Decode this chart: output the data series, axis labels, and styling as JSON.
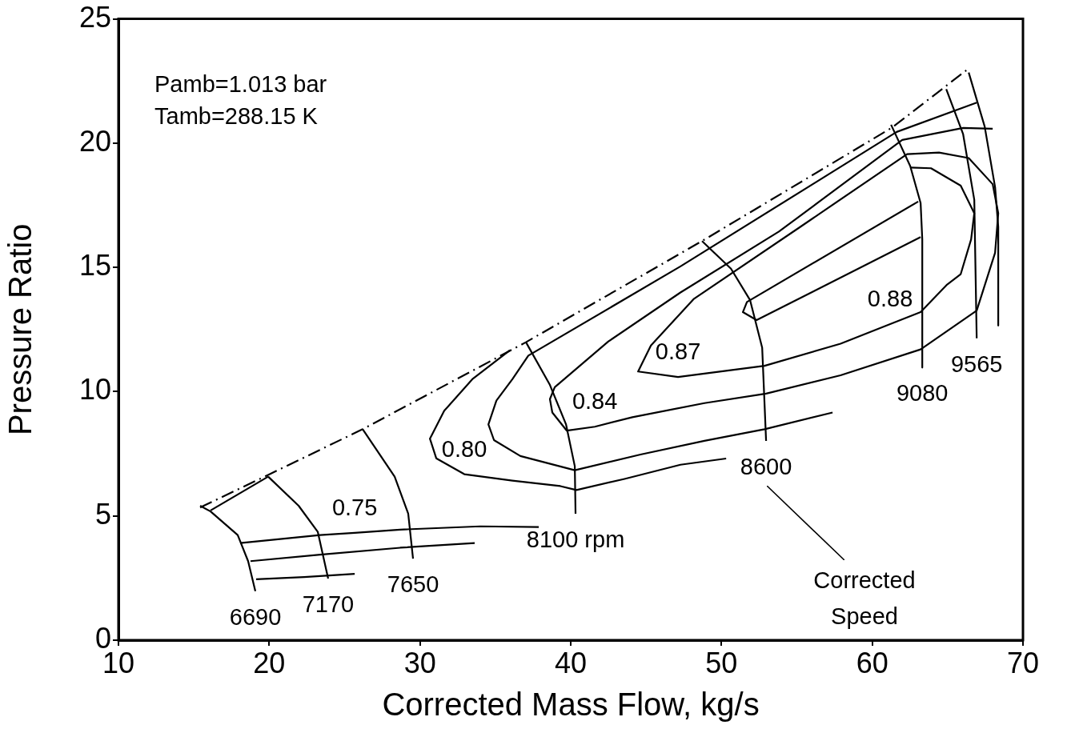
{
  "chart_data": {
    "type": "line",
    "xlabel": "Corrected Mass Flow, kg/s",
    "ylabel": "Pressure Ratio",
    "xlim": [
      10,
      70
    ],
    "xticks": [
      10,
      20,
      30,
      40,
      50,
      60,
      70
    ],
    "ylim": [
      0,
      25
    ],
    "yticks": [
      0,
      5,
      10,
      15,
      20,
      25
    ],
    "grid": false,
    "legend": false,
    "marker": "none",
    "series": [
      {
        "color": "#000000",
        "line_style": "dashed",
        "x": [
          15.42,
          19.93,
          26.2,
          37.03,
          48.71,
          61.35,
          66.24
        ],
        "values": [
          5.34,
          6.65,
          8.49,
          11.99,
          16.06,
          20.64,
          22.93
        ]
      },
      {
        "name": "6690",
        "color": "#000000",
        "x": [
          15.42,
          16.11,
          17.91,
          18.6,
          19.08
        ],
        "values": [
          5.41,
          5.18,
          4.23,
          3.18,
          1.97
        ]
      },
      {
        "name": "7170",
        "color": "#000000",
        "x": [
          19.93,
          21.95,
          23.22,
          23.91
        ],
        "values": [
          6.58,
          5.41,
          4.36,
          2.48
        ]
      },
      {
        "name": "7650",
        "color": "#000000",
        "x": [
          26.2,
          28.32,
          29.22,
          29.54
        ],
        "values": [
          8.49,
          6.58,
          5.09,
          3.28
        ]
      },
      {
        "name": "8100 rpm",
        "color": "#000000",
        "x": [
          37.03,
          38.62,
          39.69,
          40.27,
          40.32
        ],
        "values": [
          11.99,
          10.27,
          8.68,
          7.0,
          5.09
        ]
      },
      {
        "name": "8600",
        "color": "#000000",
        "x": [
          48.71,
          50.63,
          51.9,
          52.7,
          52.96
        ],
        "values": [
          16.06,
          14.95,
          13.68,
          11.77,
          8.02
        ]
      },
      {
        "name": "9080",
        "color": "#000000",
        "x": [
          61.25,
          62.52,
          63.21,
          63.32,
          63.32
        ],
        "values": [
          20.74,
          19.08,
          17.59,
          16.13,
          10.97
        ]
      },
      {
        "name": "9565",
        "color": "#000000",
        "x": [
          64.91,
          66.03,
          66.77,
          66.93
        ],
        "values": [
          22.17,
          20.36,
          17.72,
          12.15
        ]
      },
      {
        "color": "#000000",
        "x": [
          66.4,
          67.46,
          68.15,
          68.36,
          68.36
        ],
        "values": [
          22.84,
          20.67,
          18.23,
          16.63,
          12.66
        ]
      },
      {
        "color": "#000000",
        "x": [
          16.11,
          19.93
        ],
        "values": [
          5.22,
          6.58
        ]
      },
      {
        "color": "#000000",
        "x": [
          18.07,
          23.38,
          25.67,
          28.69,
          34.0,
          37.88
        ],
        "values": [
          3.91,
          4.23,
          4.32,
          4.45,
          4.58,
          4.55
        ]
      },
      {
        "color": "#000000",
        "x": [
          18.76,
          23.38,
          28.69,
          33.63
        ],
        "values": [
          3.18,
          3.44,
          3.72,
          3.91
        ]
      },
      {
        "color": "#000000",
        "x": [
          19.13,
          22.32,
          25.67
        ],
        "values": [
          2.45,
          2.54,
          2.67
        ]
      },
      {
        "color": "#000000",
        "x": [
          35.97,
          33.47,
          31.61,
          30.66,
          31.08,
          32.94,
          36.13,
          39.31,
          40.38,
          43.57,
          47.28,
          50.31
        ],
        "values": [
          11.67,
          10.5,
          9.23,
          8.11,
          7.32,
          6.68,
          6.42,
          6.2,
          6.04,
          6.49,
          7.06,
          7.31
        ]
      },
      {
        "color": "#000000",
        "x": [
          66.93,
          61.62,
          47.28,
          37.19,
          36.13,
          35.07,
          34.54,
          34.91,
          36.66,
          40.27,
          44.63,
          48.87,
          52.86,
          57.37
        ],
        "values": [
          21.63,
          20.45,
          15.04,
          11.45,
          10.5,
          9.64,
          8.68,
          8.05,
          7.41,
          6.84,
          7.47,
          8.02,
          8.49,
          9.16
        ]
      },
      {
        "color": "#000000",
        "x": [
          67.99,
          66.03,
          61.99,
          53.81,
          47.28,
          42.5,
          38.94,
          38.62,
          38.78,
          39.74,
          41.6,
          44.09,
          48.87,
          52.96,
          57.9,
          63.21,
          66.93,
          68.15,
          68.36,
          67.99,
          66.4,
          64.43,
          62.31,
          55.25,
          48.18,
          45.32,
          44.47,
          47.12,
          52.86,
          57.9,
          61.19,
          63.21,
          64.97,
          65.87,
          66.56,
          66.77,
          65.87,
          63.9,
          62.52
        ],
        "values": [
          20.58,
          20.61,
          20.13,
          16.44,
          13.99,
          12.02,
          10.18,
          9.7,
          9.16,
          8.43,
          8.59,
          8.97,
          9.54,
          9.92,
          10.66,
          11.7,
          13.26,
          15.59,
          17.18,
          18.35,
          19.4,
          19.62,
          19.56,
          16.64,
          13.74,
          11.86,
          10.81,
          10.59,
          11.04,
          11.93,
          12.72,
          13.2,
          14.31,
          14.73,
          16.13,
          17.18,
          18.29,
          18.99,
          19.02
        ]
      },
      {
        "color": "#000000",
        "x": [
          63.05,
          51.69,
          51.42,
          52.33,
          63.21
        ],
        "values": [
          17.65,
          13.61,
          13.2,
          12.88,
          16.22
        ]
      }
    ],
    "annotations": [
      "Pamb=1.013 bar",
      "Tamb=288.15 K",
      {
        "text": "0.75",
        "x": 25.67,
        "y": 4.32
      },
      {
        "text": "0.80",
        "x": 32.94,
        "y": 6.68
      },
      {
        "text": "0.84",
        "x": 41.6,
        "y": 8.59
      },
      {
        "text": "0.87",
        "x": 47.12,
        "y": 10.59
      },
      {
        "text": "0.88",
        "x": 61.19,
        "y": 12.72
      },
      "Corrected Speed"
    ]
  }
}
